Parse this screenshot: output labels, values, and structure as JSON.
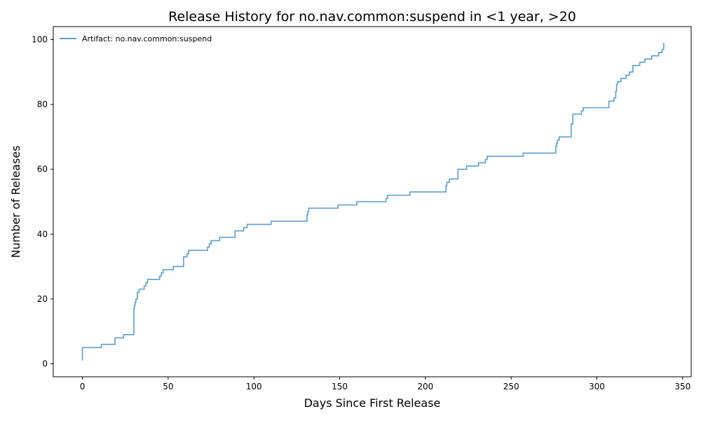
{
  "chart_data": {
    "type": "line",
    "step": "post",
    "title": "Release History for no.nav.common:suspend in <1 year, >20",
    "xlabel": "Days Since First Release",
    "ylabel": "Number of Releases",
    "xlim": [
      -17,
      355
    ],
    "ylim": [
      -4,
      104
    ],
    "xticks": [
      0,
      50,
      100,
      150,
      200,
      250,
      300,
      350
    ],
    "yticks": [
      0,
      20,
      40,
      60,
      80,
      100
    ],
    "grid": false,
    "legend_position": "top-left",
    "series": [
      {
        "name": "Artifact: no.nav.common:suspend",
        "color": "#5f9ec9",
        "x": [
          0,
          0,
          11,
          19,
          24,
          30,
          30.3,
          30.7,
          31.2,
          32,
          33,
          33.5,
          34,
          36,
          37,
          38,
          39,
          45,
          46,
          47,
          53,
          59,
          60,
          61,
          62,
          73,
          74,
          75,
          80,
          89,
          94,
          95,
          96,
          110,
          131,
          131.5,
          132,
          149,
          160,
          177,
          178,
          179,
          191,
          212,
          212.5,
          213,
          214,
          219,
          224,
          231,
          235,
          236,
          257,
          276,
          276.5,
          277,
          278,
          279,
          285,
          286,
          291,
          292,
          307,
          310,
          311,
          311.5,
          312,
          314,
          317,
          319,
          320,
          321,
          325,
          328,
          332,
          336,
          338,
          339
        ],
        "y": [
          1,
          5,
          6,
          8,
          9,
          17,
          18,
          19,
          20,
          22,
          23,
          23,
          23,
          24,
          25,
          26,
          26,
          27,
          28,
          29,
          30,
          33,
          33,
          34,
          35,
          36,
          37,
          38,
          39,
          41,
          42,
          42,
          43,
          44,
          46,
          47,
          48,
          49,
          50,
          51,
          52,
          52,
          53,
          55,
          56,
          56,
          57,
          60,
          61,
          62,
          63,
          64,
          65,
          67,
          68,
          69,
          70,
          70,
          74,
          77,
          78,
          79,
          81,
          82,
          84,
          86,
          87,
          88,
          89,
          90,
          90,
          92,
          93,
          94,
          95,
          96,
          97,
          99
        ]
      }
    ]
  }
}
